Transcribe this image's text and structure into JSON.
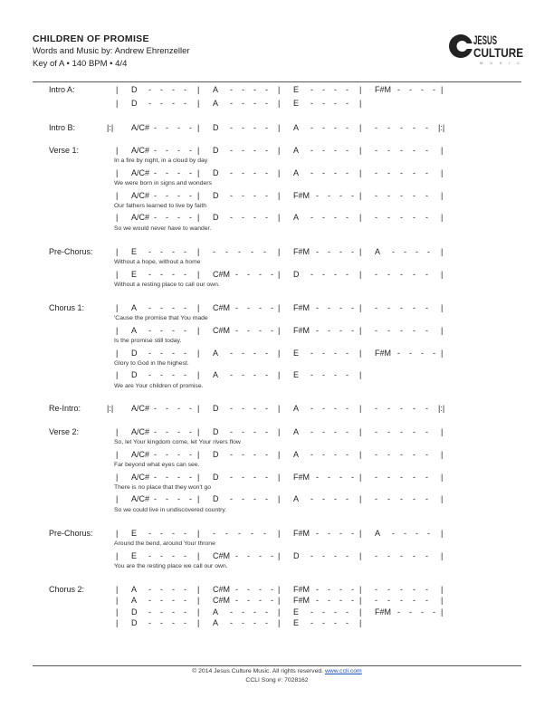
{
  "header": {
    "title": "CHILDREN OF PROMISE",
    "credits": "Words and Music by: Andrew Ehrenzeller",
    "meta": "Key of A • 140 BPM • 4/4",
    "logo": {
      "line1": "JESUS",
      "line2": "CULTURE",
      "line3": "MUSIC"
    }
  },
  "sections": [
    {
      "label": "Intro A:",
      "lines": [
        {
          "measures": [
            "D",
            "A",
            "E",
            "F#M"
          ]
        },
        {
          "measures": [
            "D",
            "A",
            "E"
          ]
        }
      ]
    },
    {
      "label": "Intro B:",
      "lines": [
        {
          "repeat": true,
          "measures": [
            "A/C#",
            "D",
            "A",
            ""
          ]
        }
      ]
    },
    {
      "label": "Verse 1:",
      "lines": [
        {
          "measures": [
            "A/C#",
            "D",
            "A",
            ""
          ],
          "lyric": "In a fire by night, in a cloud by day"
        },
        {
          "measures": [
            "A/C#",
            "D",
            "A",
            ""
          ],
          "lyric": "We were born in signs and wonders"
        },
        {
          "measures": [
            "A/C#",
            "D",
            "F#M",
            ""
          ],
          "lyric": "Our fathers learned to live by faith"
        },
        {
          "measures": [
            "A/C#",
            "D",
            "A",
            ""
          ],
          "lyric": "So we would never have to wander."
        }
      ]
    },
    {
      "label": "Pre-Chorus:",
      "lines": [
        {
          "measures": [
            "E",
            "",
            "F#M",
            "A"
          ],
          "lyric": "Without a hope, without a home"
        },
        {
          "measures": [
            "E",
            "C#M",
            "D",
            ""
          ],
          "lyric": "Without a resting place to call our own."
        }
      ]
    },
    {
      "label": "Chorus 1:",
      "lines": [
        {
          "measures": [
            "A",
            "C#M",
            "F#M",
            ""
          ],
          "lyric": "'Cause the promise that You made"
        },
        {
          "measures": [
            "A",
            "C#M",
            "F#M",
            ""
          ],
          "lyric": "Is the promise still today."
        },
        {
          "measures": [
            "D",
            "A",
            "E",
            "F#M"
          ],
          "lyric": "Glory to God in the highest."
        },
        {
          "measures": [
            "D",
            "A",
            "E"
          ],
          "lyric": "We are Your children of promise."
        }
      ]
    },
    {
      "label": "Re-Intro:",
      "lines": [
        {
          "repeat": true,
          "measures": [
            "A/C#",
            "D",
            "A",
            ""
          ]
        }
      ]
    },
    {
      "label": "Verse 2:",
      "lines": [
        {
          "measures": [
            "A/C#",
            "D",
            "A",
            ""
          ],
          "lyric": "So, let Your kingdom come, let Your rivers flow"
        },
        {
          "measures": [
            "A/C#",
            "D",
            "A",
            ""
          ],
          "lyric": "Far beyond what eyes can see."
        },
        {
          "measures": [
            "A/C#",
            "D",
            "F#M",
            ""
          ],
          "lyric": "There is no place that they won't go"
        },
        {
          "measures": [
            "A/C#",
            "D",
            "A",
            ""
          ],
          "lyric": "So we could live in undiscovered country."
        }
      ]
    },
    {
      "label": "Pre-Chorus:",
      "lines": [
        {
          "measures": [
            "E",
            "",
            "F#M",
            "A"
          ],
          "lyric": "Around the bend, around Your throne"
        },
        {
          "measures": [
            "E",
            "C#M",
            "D",
            ""
          ],
          "lyric": "You are the resting place we call our own."
        }
      ]
    },
    {
      "label": "Chorus 2:",
      "lines": [
        {
          "measures": [
            "A",
            "C#M",
            "F#M",
            ""
          ]
        },
        {
          "measures": [
            "A",
            "C#M",
            "F#M",
            ""
          ]
        },
        {
          "measures": [
            "D",
            "A",
            "E",
            "F#M"
          ]
        },
        {
          "measures": [
            "D",
            "A",
            "E"
          ]
        }
      ]
    }
  ],
  "footer": {
    "copyright": "© 2014 Jesus Culture Music.  All rights reserved.",
    "link": "www.ccli.com",
    "ccli": "CCLI Song #: 7028162"
  },
  "symbols": {
    "bar": "|",
    "dash": "-",
    "repeat_start": "|:|",
    "repeat_end": "|:|"
  }
}
